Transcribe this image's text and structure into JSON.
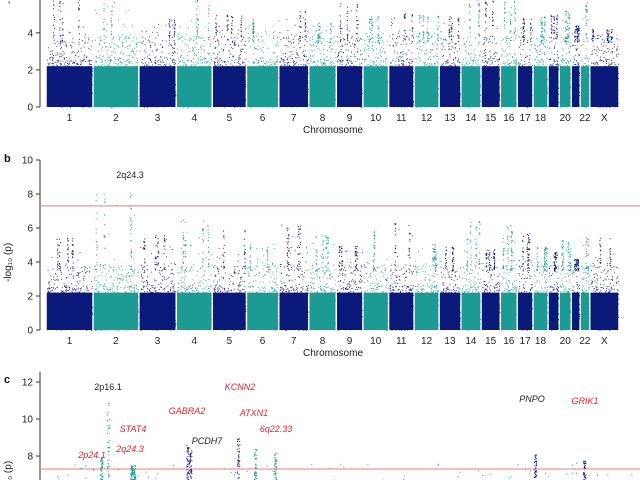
{
  "colors": {
    "dark": "#0b1a7a",
    "teal": "#1c9a94",
    "threshold": "#f07a73",
    "axis": "#333333"
  },
  "chart_data": [
    {
      "panel": "a",
      "type": "scatter",
      "subtype": "manhattan",
      "xlabel": "Chromosome",
      "ylabel_visible": "-lo",
      "ylim": [
        0,
        6.2
      ],
      "y_ticks": [
        0,
        2,
        4,
        6
      ],
      "x_ticks": [
        "1",
        "2",
        "3",
        "4",
        "5",
        "6",
        "7",
        "8",
        "9",
        "10",
        "11",
        "12",
        "13",
        "14",
        "15",
        "16",
        "17",
        "18",
        "20",
        "22",
        "X"
      ],
      "chromosomes": [
        "1",
        "2",
        "3",
        "4",
        "5",
        "6",
        "7",
        "8",
        "9",
        "10",
        "11",
        "12",
        "13",
        "14",
        "15",
        "16",
        "17",
        "18",
        "19",
        "20",
        "21",
        "22",
        "X"
      ],
      "peaks": [
        6.3,
        6.3,
        4.8,
        6.3,
        5.0,
        4.8,
        5.4,
        4.6,
        5.7,
        4.9,
        5.1,
        5.0,
        4.9,
        6.2,
        6.3,
        6.0,
        4.8,
        4.9,
        5.0,
        5.2,
        4.4,
        6.3,
        4.2
      ],
      "threshold": null,
      "grid": false
    },
    {
      "panel": "b",
      "type": "scatter",
      "subtype": "manhattan",
      "xlabel": "Chromosome",
      "ylabel": "-log₁₀ (p)",
      "ylim": [
        0,
        10
      ],
      "y_ticks": [
        0,
        2,
        4,
        6,
        8,
        10
      ],
      "x_ticks": [
        "1",
        "2",
        "3",
        "4",
        "5",
        "6",
        "7",
        "8",
        "9",
        "10",
        "11",
        "12",
        "13",
        "14",
        "15",
        "16",
        "17",
        "18",
        "20",
        "22",
        "X"
      ],
      "chromosomes": [
        "1",
        "2",
        "3",
        "4",
        "5",
        "6",
        "7",
        "8",
        "9",
        "10",
        "11",
        "12",
        "13",
        "14",
        "15",
        "16",
        "17",
        "18",
        "19",
        "20",
        "21",
        "22",
        "X"
      ],
      "peaks": [
        5.5,
        8.1,
        5.6,
        6.6,
        5.9,
        5.1,
        6.2,
        5.6,
        5.0,
        5.9,
        6.5,
        5.1,
        4.9,
        6.4,
        4.8,
        6.2,
        5.7,
        4.9,
        4.6,
        5.3,
        4.2,
        5.5,
        5.8
      ],
      "threshold": 7.3,
      "annotations": [
        {
          "label": "2q24.3",
          "chromosome": "2",
          "y": 8.1
        }
      ],
      "grid": false
    },
    {
      "panel": "c",
      "type": "scatter",
      "subtype": "manhattan",
      "ylabel": "-log₁₀ (p)",
      "ylim_visible": [
        6.5,
        12.5
      ],
      "y_ticks": [
        8,
        10,
        12
      ],
      "threshold": 7.3,
      "points": [
        {
          "label": "2p16.1",
          "color": "black",
          "y": 10.9
        },
        {
          "label": "2p24.1",
          "color": "red",
          "y": 7.9
        },
        {
          "label": "STAT4",
          "color": "red",
          "y": 7.5
        },
        {
          "label": "2q24.3",
          "color": "red",
          "y": 7.5
        },
        {
          "label": "GABRA2",
          "color": "red",
          "y": 8.6
        },
        {
          "label": "PCDH7",
          "color": "black",
          "y": 8.4
        },
        {
          "label": "KCNN2",
          "color": "red",
          "y": 9.1
        },
        {
          "label": "ATXN1",
          "color": "red",
          "y": 8.4
        },
        {
          "label": "6q22.33",
          "color": "red",
          "y": 8.2
        },
        {
          "label": "PNPO",
          "color": "black",
          "y": 8.1
        },
        {
          "label": "GRIK1",
          "color": "red",
          "y": 7.8
        }
      ],
      "grid": false
    }
  ],
  "panels": {
    "a": {
      "letter": "",
      "xlabel": "Chromosome",
      "ylabel": "-lo"
    },
    "b": {
      "letter": "b",
      "xlabel": "Chromosome",
      "ylabel": "-log₁₀ (p)"
    },
    "c": {
      "letter": "c",
      "ylabel": "₀ (p)"
    }
  }
}
